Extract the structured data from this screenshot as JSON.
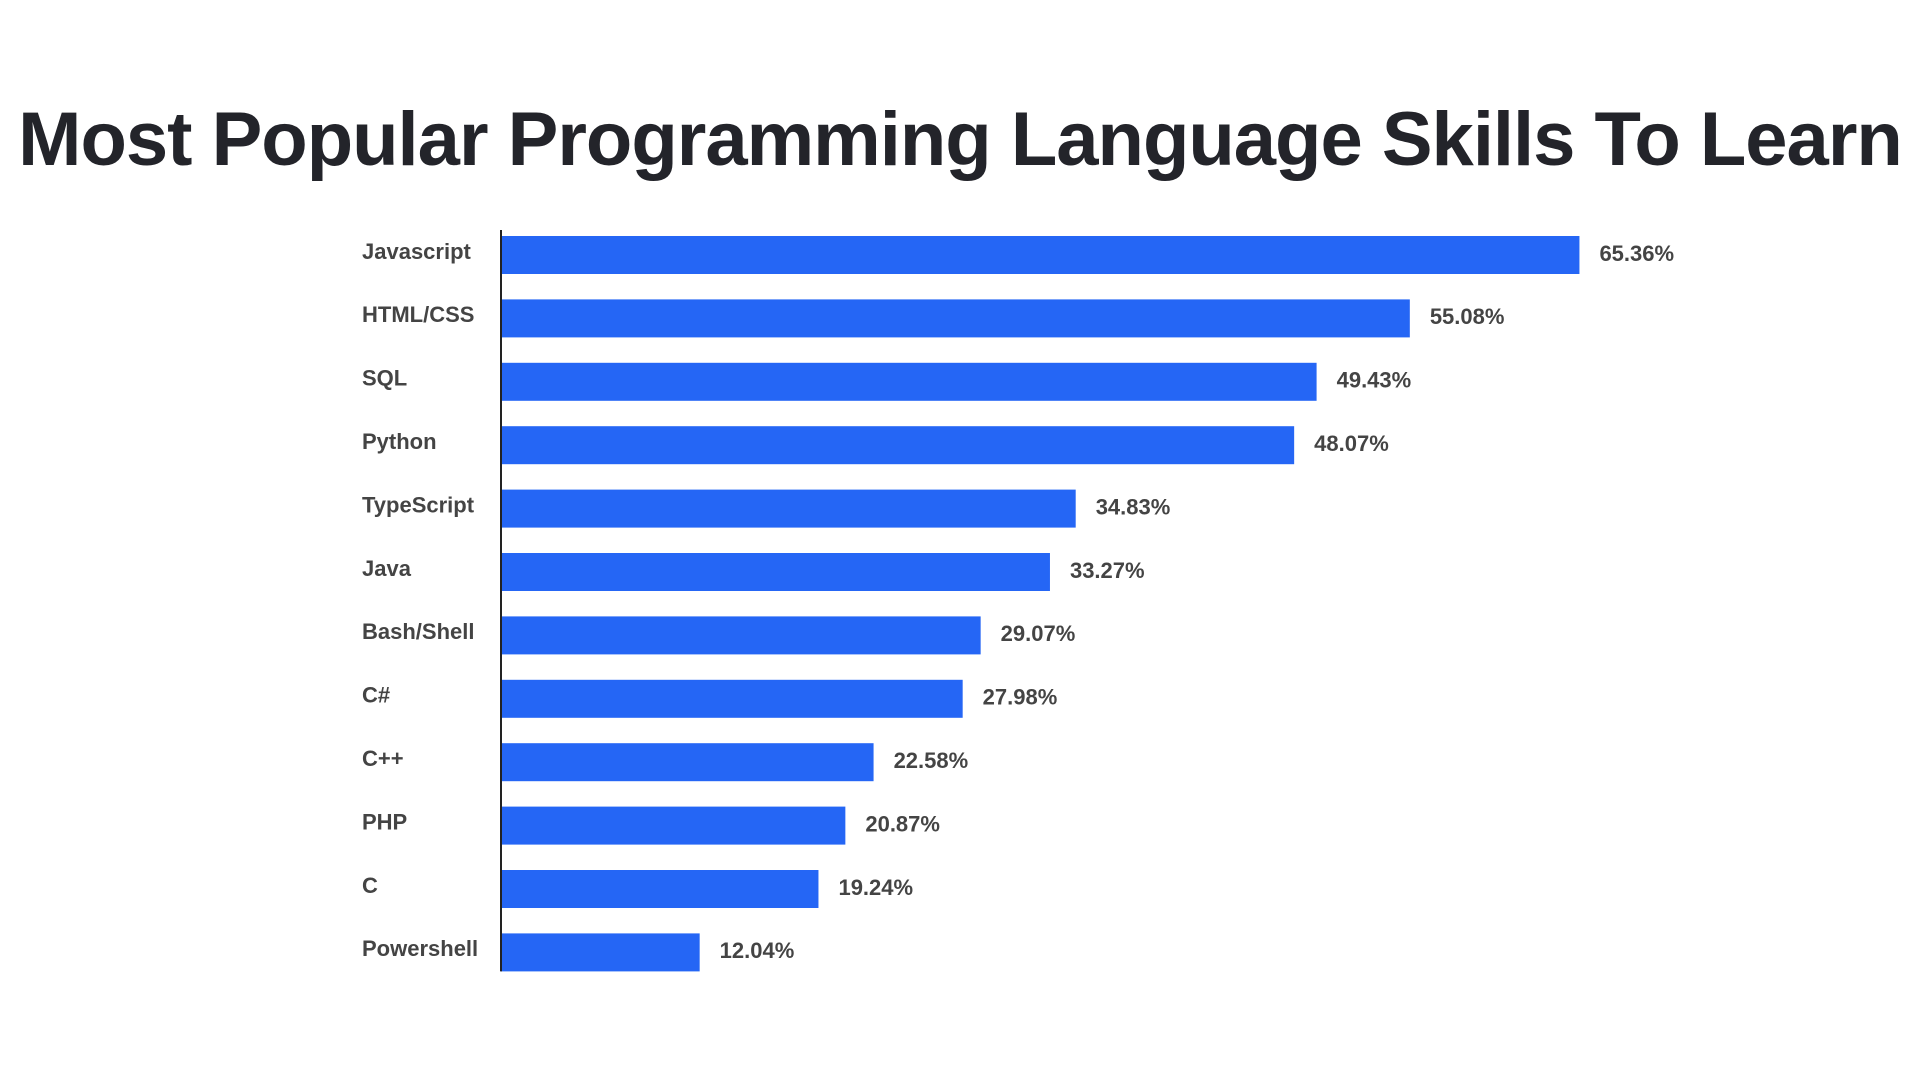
{
  "chart_data": {
    "type": "bar",
    "orientation": "horizontal",
    "title": "Most Popular Programming Language Skills To Learn",
    "categories": [
      "Javascript",
      "HTML/CSS",
      "SQL",
      "Python",
      "TypeScript",
      "Java",
      "Bash/Shell",
      "C#",
      "C++",
      "PHP",
      "C",
      "Powershell"
    ],
    "values": [
      65.36,
      55.08,
      49.43,
      48.07,
      34.83,
      33.27,
      29.07,
      27.98,
      22.58,
      20.87,
      19.24,
      12.04
    ],
    "value_labels": [
      "65.36%",
      "55.08%",
      "49.43%",
      "48.07%",
      "34.83%",
      "33.27%",
      "29.07%",
      "27.98%",
      "22.58%",
      "20.87%",
      "19.24%",
      "12.04%"
    ],
    "xlabel": "",
    "ylabel": "",
    "xlim": [
      0,
      70
    ],
    "grid": false,
    "bar_color": "#2566f5"
  }
}
